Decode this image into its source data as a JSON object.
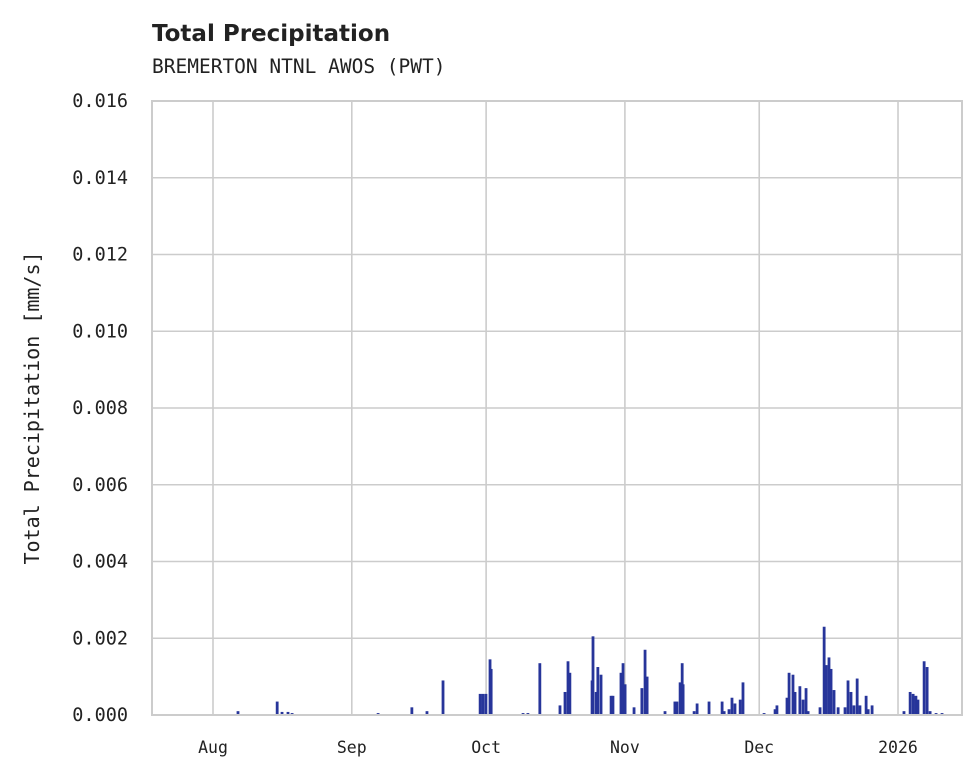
{
  "chart_data": {
    "type": "bar",
    "title": "Total Precipitation",
    "subtitle": "BREMERTON NTNL AWOS (PWT)",
    "xlabel": "",
    "ylabel": "Total Precipitation [mm/s]",
    "xlim": [
      "2025-07-18T09:00",
      "2026-01-15T07:00"
    ],
    "ylim": [
      0,
      0.016
    ],
    "yticks": [
      0,
      0.002,
      0.004,
      0.006,
      0.008,
      0.01,
      0.012,
      0.014,
      0.016
    ],
    "ytick_labels": [
      "0.000",
      "0.002",
      "0.004",
      "0.006",
      "0.008",
      "0.010",
      "0.012",
      "0.014",
      "0.016"
    ],
    "xticks": [
      "2025-08-01",
      "2025-09-01",
      "2025-10-01",
      "2025-11-01",
      "2025-12-01",
      "2026-01-01"
    ],
    "xtick_labels": [
      "Aug",
      "Sep",
      "Oct",
      "Nov",
      "Dec",
      "2026"
    ],
    "grid": true,
    "color": "#27359a",
    "series": [
      {
        "name": "Total Precipitation",
        "points": [
          [
            "2025-08-06T14:00",
            0.0001
          ],
          [
            "2025-08-15T08:00",
            0.00035
          ],
          [
            "2025-08-16T10:00",
            8e-05
          ],
          [
            "2025-08-17T18:00",
            8e-05
          ],
          [
            "2025-08-18T16:00",
            5e-05
          ],
          [
            "2025-09-06T21:00",
            5e-05
          ],
          [
            "2025-09-14T10:00",
            0.0002
          ],
          [
            "2025-09-17T19:00",
            0.0001
          ],
          [
            "2025-09-21T09:00",
            0.0009
          ],
          [
            "2025-09-29T16:00",
            0.00055
          ],
          [
            "2025-09-30T07:00",
            0.00055
          ],
          [
            "2025-09-30T23:00",
            0.00055
          ],
          [
            "2025-10-01T21:00",
            0.00145
          ],
          [
            "2025-10-02T03:00",
            0.0012
          ],
          [
            "2025-10-09T06:00",
            5e-05
          ],
          [
            "2025-10-10T08:00",
            5e-05
          ],
          [
            "2025-10-13T00:00",
            0.00135
          ],
          [
            "2025-10-17T12:00",
            0.00025
          ],
          [
            "2025-10-18T15:00",
            0.0006
          ],
          [
            "2025-10-19T07:00",
            0.0014
          ],
          [
            "2025-10-19T17:00",
            0.0011
          ],
          [
            "2025-10-24T16:00",
            0.0009
          ],
          [
            "2025-10-24T21:00",
            0.00205
          ],
          [
            "2025-10-25T14:00",
            0.0006
          ],
          [
            "2025-10-25T23:00",
            0.00125
          ],
          [
            "2025-10-26T16:00",
            0.00105
          ],
          [
            "2025-10-28T22:00",
            0.0005
          ],
          [
            "2025-10-29T08:00",
            0.0005
          ],
          [
            "2025-10-31T03:00",
            0.0011
          ],
          [
            "2025-10-31T14:00",
            0.00135
          ],
          [
            "2025-11-01T01:00",
            0.0008
          ],
          [
            "2025-11-03T01:00",
            0.0002
          ],
          [
            "2025-11-04T19:00",
            0.0007
          ],
          [
            "2025-11-05T12:00",
            0.0017
          ],
          [
            "2025-11-05T23:00",
            0.001
          ],
          [
            "2025-11-09T23:00",
            0.0001
          ],
          [
            "2025-11-12T04:00",
            0.00035
          ],
          [
            "2025-11-12T15:00",
            0.00035
          ],
          [
            "2025-11-13T08:00",
            0.00085
          ],
          [
            "2025-11-13T19:00",
            0.00135
          ],
          [
            "2025-11-14T00:00",
            0.0008
          ],
          [
            "2025-11-16T11:00",
            0.0001
          ],
          [
            "2025-11-17T03:00",
            0.0003
          ],
          [
            "2025-11-19T19:00",
            0.00035
          ],
          [
            "2025-11-22T17:00",
            0.00035
          ],
          [
            "2025-11-23T04:00",
            0.0001
          ],
          [
            "2025-11-24T06:00",
            0.00015
          ],
          [
            "2025-11-24T22:00",
            0.00045
          ],
          [
            "2025-11-25T14:00",
            0.0003
          ],
          [
            "2025-11-26T18:00",
            0.0004
          ],
          [
            "2025-11-27T09:00",
            0.00085
          ],
          [
            "2025-12-02T02:00",
            5e-05
          ],
          [
            "2025-12-04T13:00",
            0.00015
          ],
          [
            "2025-12-04T23:00",
            0.00025
          ],
          [
            "2025-12-07T05:00",
            0.00045
          ],
          [
            "2025-12-07T16:00",
            0.0011
          ],
          [
            "2025-12-08T13:00",
            0.00105
          ],
          [
            "2025-12-09T00:00",
            0.0006
          ],
          [
            "2025-12-10T02:00",
            0.00075
          ],
          [
            "2025-12-10T19:00",
            0.0004
          ],
          [
            "2025-12-11T11:00",
            0.0007
          ],
          [
            "2025-12-11T22:00",
            0.0001
          ],
          [
            "2025-12-14T14:00",
            0.0002
          ],
          [
            "2025-12-15T12:00",
            0.0023
          ],
          [
            "2025-12-15T23:00",
            0.0013
          ],
          [
            "2025-12-16T14:00",
            0.0015
          ],
          [
            "2025-12-17T01:00",
            0.0012
          ],
          [
            "2025-12-17T17:00",
            0.00065
          ],
          [
            "2025-12-18T15:00",
            0.0002
          ],
          [
            "2025-12-20T04:00",
            0.0002
          ],
          [
            "2025-12-20T20:00",
            0.0009
          ],
          [
            "2025-12-21T12:00",
            0.0006
          ],
          [
            "2025-12-22T04:00",
            0.00025
          ],
          [
            "2025-12-22T21:00",
            0.00095
          ],
          [
            "2025-12-23T12:00",
            0.00025
          ],
          [
            "2025-12-24T21:00",
            0.0005
          ],
          [
            "2025-12-25T08:00",
            0.00015
          ],
          [
            "2025-12-26T05:00",
            0.00025
          ],
          [
            "2026-01-02T08:00",
            0.0001
          ],
          [
            "2026-01-03T17:00",
            0.0006
          ],
          [
            "2026-01-04T09:00",
            0.00055
          ],
          [
            "2026-01-05T00:00",
            0.0005
          ],
          [
            "2026-01-05T11:00",
            0.0004
          ],
          [
            "2026-01-06T20:00",
            0.0014
          ],
          [
            "2026-01-07T12:00",
            0.00125
          ],
          [
            "2026-01-08T04:00",
            0.0001
          ],
          [
            "2026-01-09T12:00",
            5e-05
          ],
          [
            "2026-01-10T20:00",
            5e-05
          ]
        ]
      }
    ]
  }
}
